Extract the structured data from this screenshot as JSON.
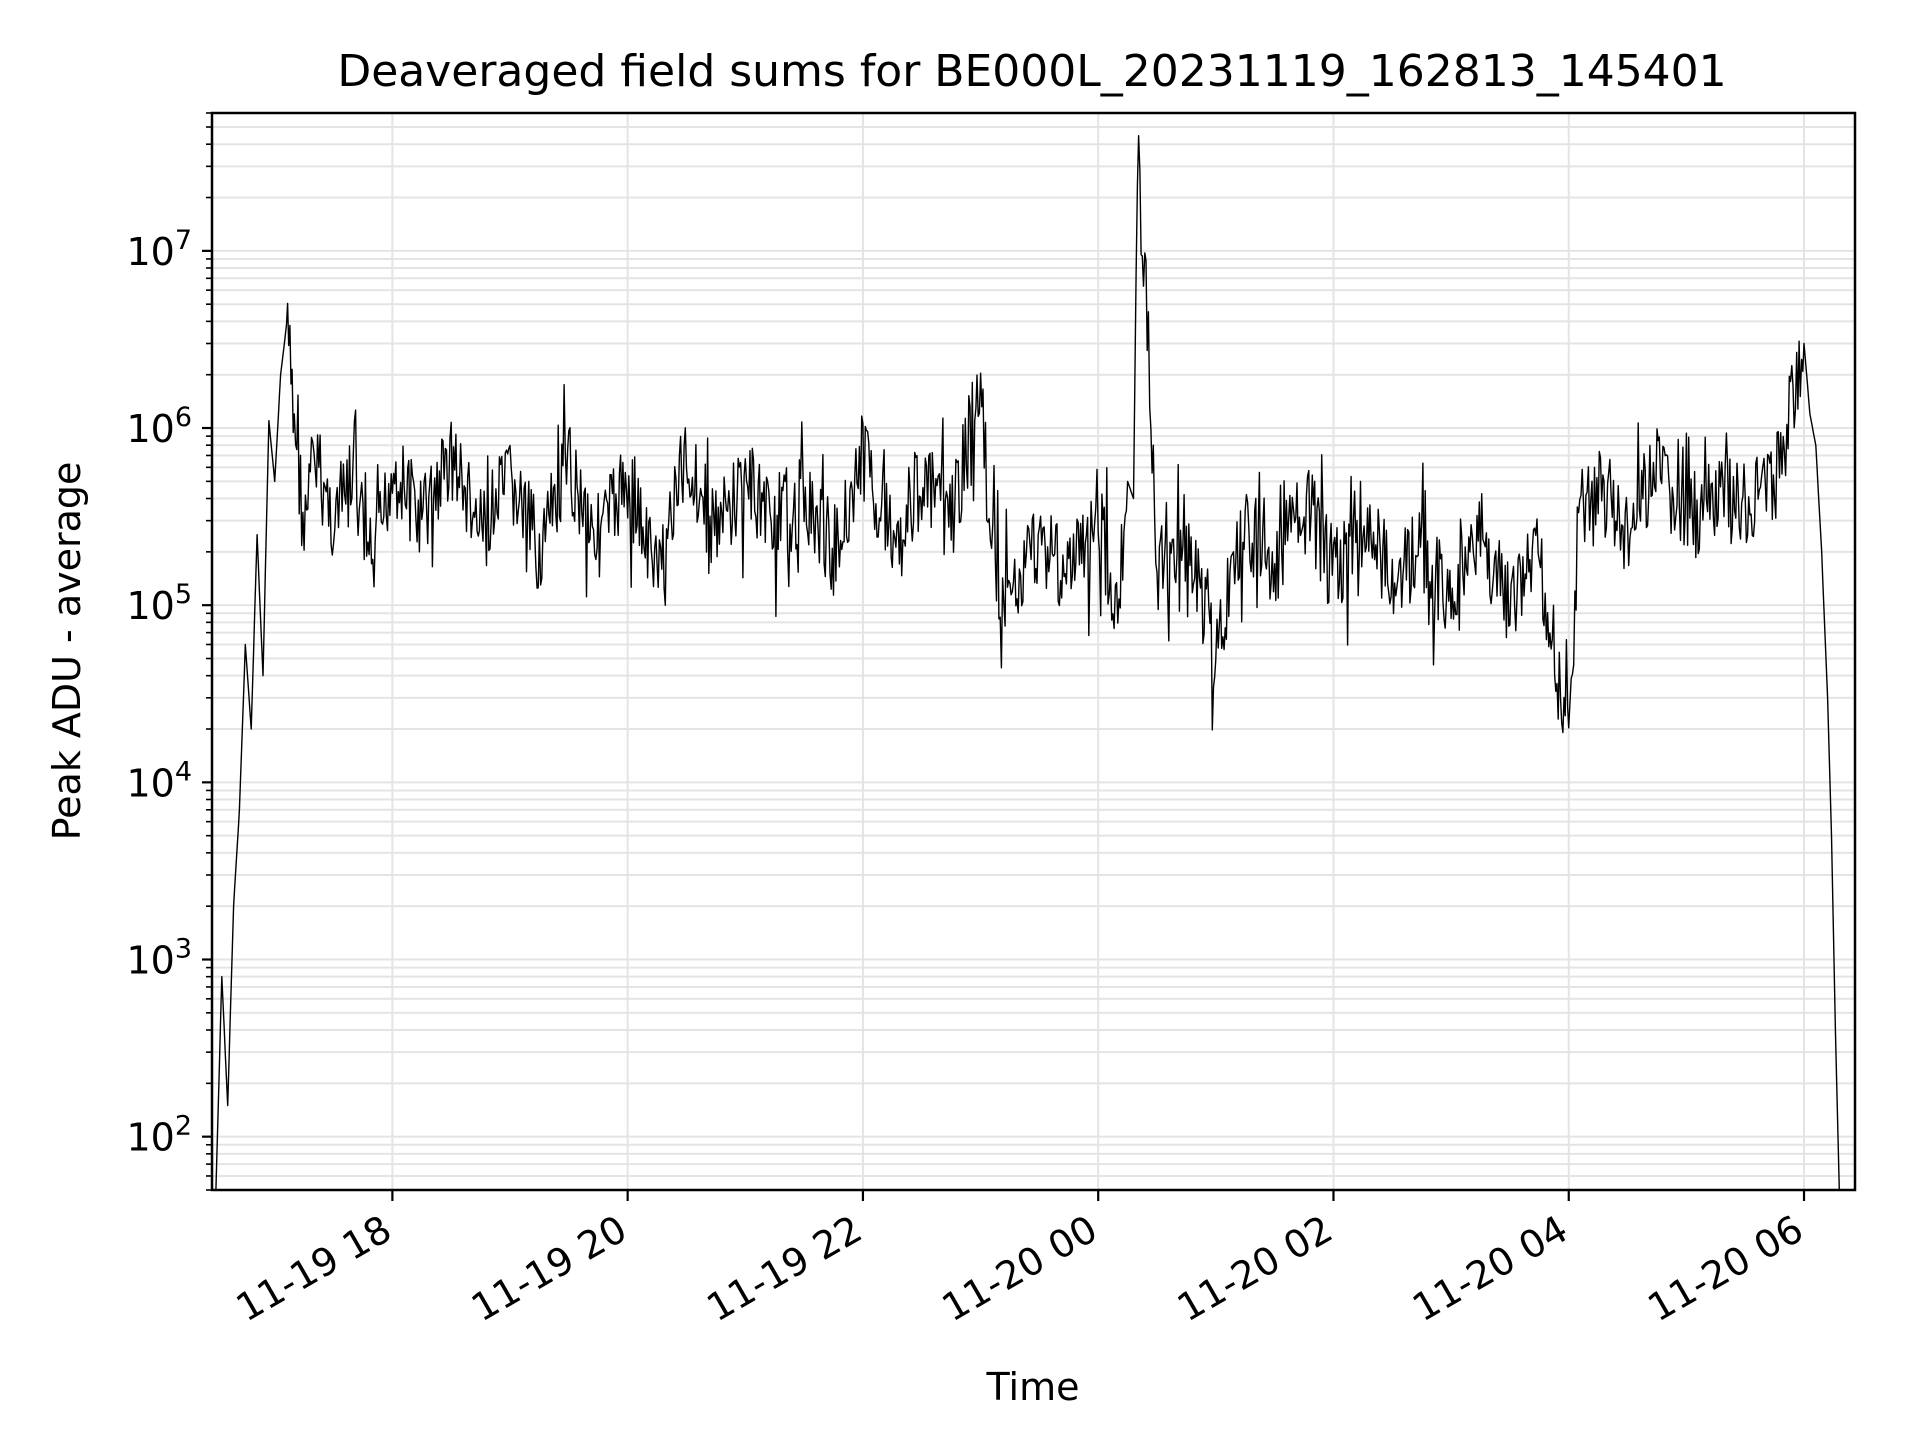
{
  "chart_data": {
    "type": "line",
    "title": "Deaveraged field sums for BE000L_20231119_162813_145401",
    "xlabel": "Time",
    "ylabel": "Peak ADU - average",
    "yscale": "log",
    "grid": true,
    "ylim": [
      50,
      60000000
    ],
    "xlim": [
      "2023-11-19 16:28",
      "2023-11-20 06:26"
    ],
    "x_ticks": [
      {
        "t": "2023-11-19 18:00",
        "label": "11-19 18"
      },
      {
        "t": "2023-11-19 20:00",
        "label": "11-19 20"
      },
      {
        "t": "2023-11-19 22:00",
        "label": "11-19 22"
      },
      {
        "t": "2023-11-20 00:00",
        "label": "11-20 00"
      },
      {
        "t": "2023-11-20 02:00",
        "label": "11-20 02"
      },
      {
        "t": "2023-11-20 04:00",
        "label": "11-20 04"
      },
      {
        "t": "2023-11-20 06:00",
        "label": "11-20 06"
      }
    ],
    "y_ticks": [
      {
        "value": 100,
        "base": "10",
        "exp": "2"
      },
      {
        "value": 1000,
        "base": "10",
        "exp": "3"
      },
      {
        "value": 10000,
        "base": "10",
        "exp": "4"
      },
      {
        "value": 100000,
        "base": "10",
        "exp": "5"
      },
      {
        "value": 1000000,
        "base": "10",
        "exp": "6"
      },
      {
        "value": 10000000,
        "base": "10",
        "exp": "7"
      }
    ],
    "series": [
      {
        "color": "#000000",
        "x": [
          "2023-11-19 16:30",
          "2023-11-19 16:33",
          "2023-11-19 16:36",
          "2023-11-19 16:39",
          "2023-11-19 16:42",
          "2023-11-19 16:45",
          "2023-11-19 16:48",
          "2023-11-19 16:51",
          "2023-11-19 16:54",
          "2023-11-19 16:57",
          "2023-11-19 17:00",
          "2023-11-19 17:03",
          "2023-11-19 17:06",
          "2023-11-19 17:10",
          "2023-11-19 17:15",
          "2023-11-19 17:20",
          "2023-11-19 17:30",
          "2023-11-19 17:40",
          "2023-11-19 17:50",
          "2023-11-19 18:00",
          "2023-11-19 18:15",
          "2023-11-19 18:30",
          "2023-11-19 18:45",
          "2023-11-19 19:00",
          "2023-11-19 19:15",
          "2023-11-19 19:30",
          "2023-11-19 19:45",
          "2023-11-19 20:00",
          "2023-11-19 20:15",
          "2023-11-19 20:30",
          "2023-11-19 20:45",
          "2023-11-19 21:00",
          "2023-11-19 21:15",
          "2023-11-19 21:30",
          "2023-11-19 21:45",
          "2023-11-19 22:00",
          "2023-11-19 22:15",
          "2023-11-19 22:30",
          "2023-11-19 22:45",
          "2023-11-19 23:00",
          "2023-11-19 23:05",
          "2023-11-19 23:15",
          "2023-11-19 23:30",
          "2023-11-19 23:45",
          "2023-11-20 00:00",
          "2023-11-20 00:10",
          "2023-11-20 00:15",
          "2023-11-20 00:18",
          "2023-11-20 00:20",
          "2023-11-20 00:25",
          "2023-11-20 00:30",
          "2023-11-20 00:45",
          "2023-11-20 01:00",
          "2023-11-20 01:15",
          "2023-11-20 01:30",
          "2023-11-20 01:45",
          "2023-11-20 02:00",
          "2023-11-20 02:15",
          "2023-11-20 02:30",
          "2023-11-20 02:45",
          "2023-11-20 03:00",
          "2023-11-20 03:15",
          "2023-11-20 03:30",
          "2023-11-20 03:45",
          "2023-11-20 04:00",
          "2023-11-20 04:05",
          "2023-11-20 04:15",
          "2023-11-20 04:30",
          "2023-11-20 04:45",
          "2023-11-20 05:00",
          "2023-11-20 05:15",
          "2023-11-20 05:30",
          "2023-11-20 05:45",
          "2023-11-20 05:55",
          "2023-11-20 06:00",
          "2023-11-20 06:03",
          "2023-11-20 06:06",
          "2023-11-20 06:09",
          "2023-11-20 06:12",
          "2023-11-20 06:14",
          "2023-11-20 06:16",
          "2023-11-20 06:18"
        ],
        "y": [
          50,
          800,
          150,
          2000,
          7000,
          60000,
          20000,
          250000,
          40000,
          1100000,
          500000,
          2000000,
          3800000,
          1200000,
          250000,
          700000,
          300000,
          500000,
          150000,
          600000,
          300000,
          700000,
          250000,
          500000,
          200000,
          600000,
          250000,
          500000,
          150000,
          700000,
          250000,
          500000,
          300000,
          400000,
          200000,
          700000,
          250000,
          500000,
          300000,
          1700000,
          200000,
          100000,
          250000,
          150000,
          300000,
          100000,
          500000,
          400000,
          32000000,
          4000000,
          150000,
          250000,
          50000,
          300000,
          150000,
          400000,
          150000,
          300000,
          150000,
          200000,
          100000,
          250000,
          100000,
          200000,
          15000,
          350000,
          500000,
          250000,
          600000,
          300000,
          400000,
          350000,
          500000,
          1500000,
          3000000,
          1200000,
          800000,
          200000,
          30000,
          5000,
          400,
          50
        ]
      }
    ]
  }
}
